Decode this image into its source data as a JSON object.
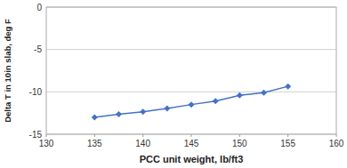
{
  "chart_data": {
    "type": "line",
    "x": [
      135,
      137.5,
      140,
      142.5,
      145,
      147.5,
      150,
      152.5,
      155
    ],
    "values": [
      -13.0,
      -12.65,
      -12.35,
      -11.95,
      -11.5,
      -11.1,
      -10.4,
      -10.1,
      -9.35
    ],
    "color": "#4472C4",
    "marker": "diamond",
    "xlabel": "PCC unit weight, lb/ft3",
    "ylabel": "Delta T in 10in slab, deg F",
    "xlim": [
      130,
      160
    ],
    "ylim": [
      -15,
      0
    ],
    "xticks": [
      130,
      135,
      140,
      145,
      150,
      155,
      160
    ],
    "yticks": [
      -15,
      -10,
      -5,
      0
    ],
    "grid": true
  }
}
